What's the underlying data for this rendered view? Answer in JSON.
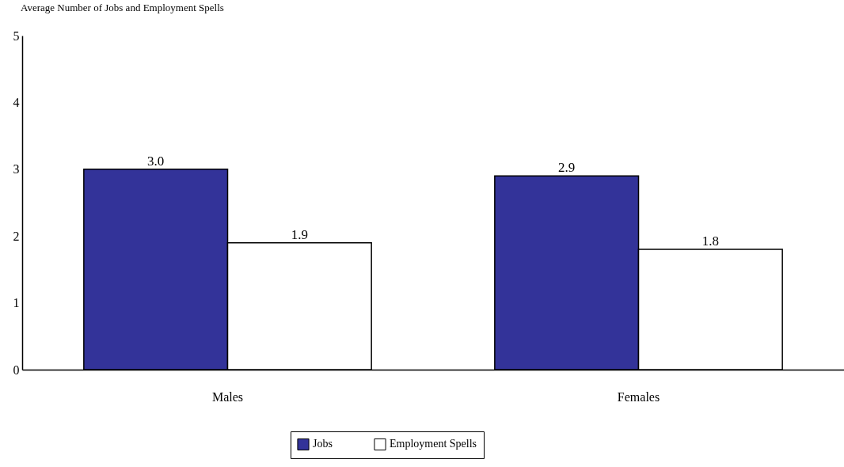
{
  "chart_data": {
    "type": "bar",
    "title": "Average Number of Jobs and Employment Spells",
    "categories": [
      "Males",
      "Females"
    ],
    "series": [
      {
        "name": "Jobs",
        "color": "#333399",
        "values": [
          3.0,
          2.9
        ],
        "value_labels": [
          "3.0",
          "2.9"
        ]
      },
      {
        "name": "Employment Spells",
        "color": "#ffffff",
        "values": [
          1.9,
          1.8
        ],
        "value_labels": [
          "1.9",
          "1.8"
        ]
      }
    ],
    "ylim": [
      0,
      5
    ],
    "yticks": [
      0,
      1,
      2,
      3,
      4,
      5
    ],
    "grid": false,
    "legend": "bottom"
  }
}
